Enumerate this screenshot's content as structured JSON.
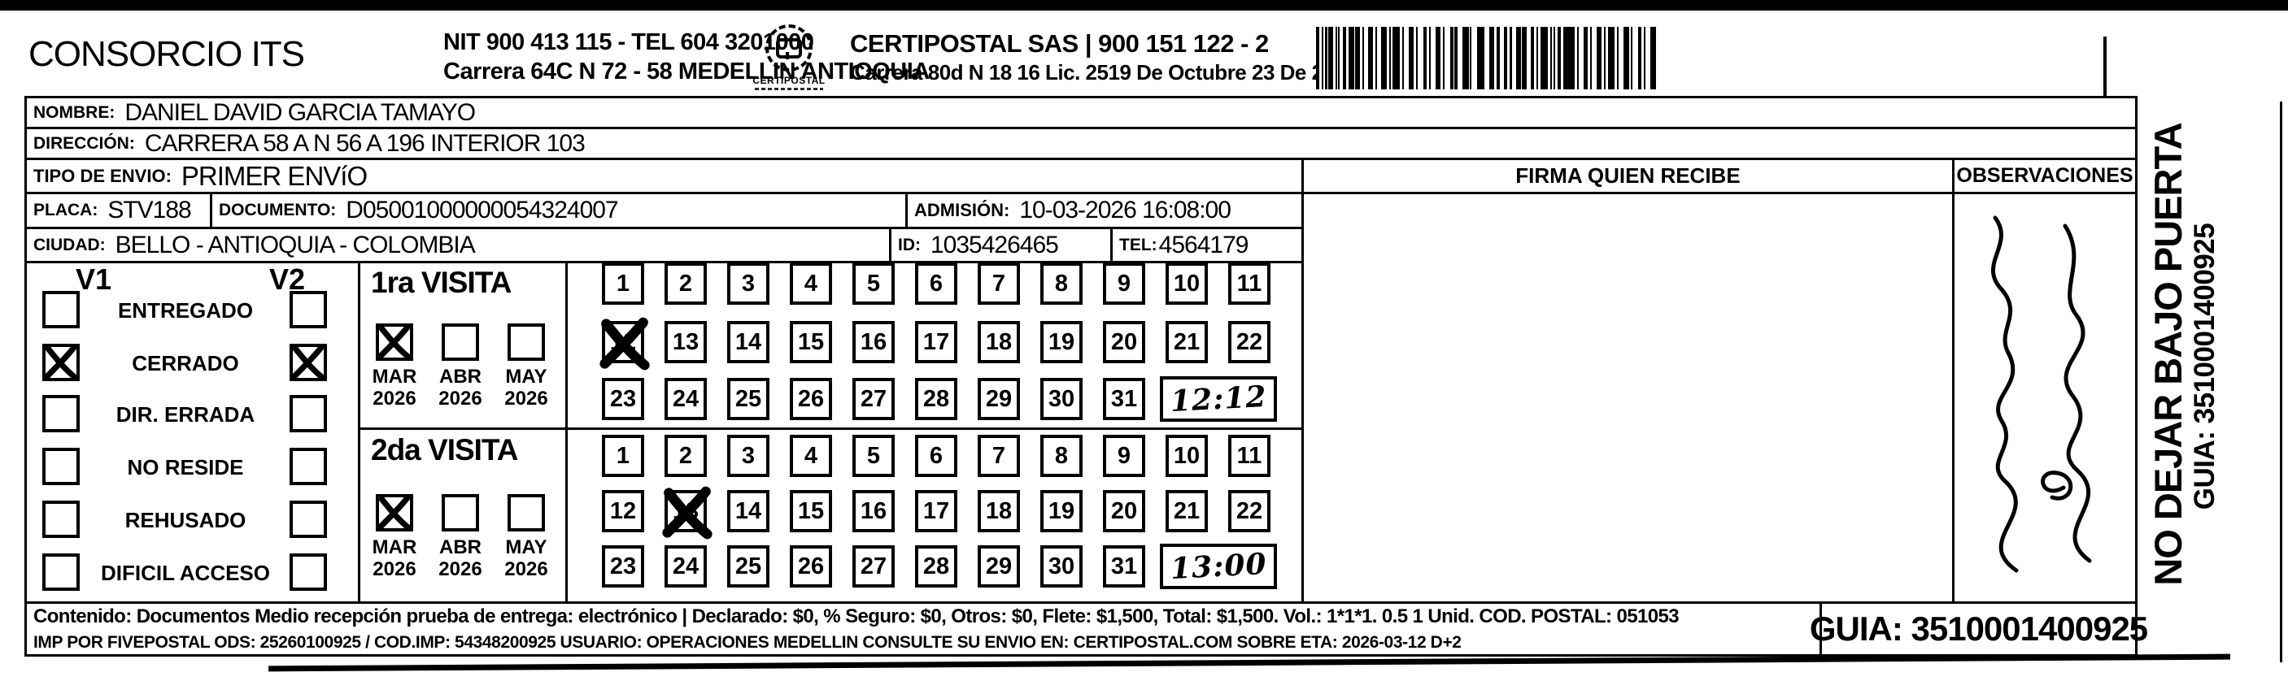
{
  "header": {
    "company": "CONSORCIO ITS",
    "nit_line1": "NIT 900 413 115 - TEL 604 3201000",
    "nit_line2": "Carrera 64C N 72 - 58 MEDELLIN ANTIOQUIA",
    "logo_caption": "CERTIPOSTAL",
    "certipostal_line1": "CERTIPOSTAL SAS | 900 151 122 - 2",
    "certipostal_line2": "Carrera 80d N 18 16  Lic. 2519 De Octubre 23 De 2015"
  },
  "recipient": {
    "nombre_label": "NOMBRE:",
    "nombre": "DANIEL DAVID GARCIA TAMAYO",
    "direccion_label": "DIRECCIÓN:",
    "direccion": "CARRERA 58 A N 56 A 196 INTERIOR 103",
    "tipo_envio_label": "TIPO DE ENVIO:",
    "tipo_envio": "PRIMER ENVíO",
    "placa_label": "PLACA:",
    "placa": "STV188",
    "documento_label": "DOCUMENTO:",
    "documento": "D05001000000054324007",
    "admision_label": "ADMISIÓN:",
    "admision": "10-03-2026 16:08:00",
    "ciudad_label": "CIUDAD:",
    "ciudad": "BELLO - ANTIOQUIA - COLOMBIA",
    "id_label": "ID:",
    "id": "1035426465",
    "tel_label": "TEL:",
    "tel": "4564179"
  },
  "status": {
    "v1_label": "V1",
    "v2_label": "V2",
    "options": [
      {
        "label": "ENTREGADO",
        "v1": false,
        "v2": false
      },
      {
        "label": "CERRADO",
        "v1": true,
        "v2": true
      },
      {
        "label": "DIR. ERRADA",
        "v1": false,
        "v2": false
      },
      {
        "label": "NO RESIDE",
        "v1": false,
        "v2": false
      },
      {
        "label": "REHUSADO",
        "v1": false,
        "v2": false
      },
      {
        "label": "DIFICIL ACCESO",
        "v1": false,
        "v2": false
      }
    ]
  },
  "visits": [
    {
      "title": "1ra VISITA",
      "months": [
        {
          "label": "MAR",
          "year": "2026",
          "checked": true
        },
        {
          "label": "ABR",
          "year": "2026",
          "checked": false
        },
        {
          "label": "MAY",
          "year": "2026",
          "checked": false
        }
      ],
      "crossed_day": 12,
      "time": "12:12"
    },
    {
      "title": "2da VISITA",
      "months": [
        {
          "label": "MAR",
          "year": "2026",
          "checked": true
        },
        {
          "label": "ABR",
          "year": "2026",
          "checked": false
        },
        {
          "label": "MAY",
          "year": "2026",
          "checked": false
        }
      ],
      "crossed_day": 13,
      "time": "13:00"
    }
  ],
  "day_grid": {
    "rows": [
      [
        1,
        2,
        3,
        4,
        5,
        6,
        7,
        8,
        9,
        10,
        11
      ],
      [
        12,
        13,
        14,
        15,
        16,
        17,
        18,
        19,
        20,
        21,
        22
      ],
      [
        23,
        24,
        25,
        26,
        27,
        28,
        29,
        30,
        31
      ]
    ]
  },
  "firma": {
    "header": "FIRMA QUIEN RECIBE"
  },
  "observaciones": {
    "header": "OBSERVACIONES"
  },
  "side_strip": {
    "line1": "NO DEJAR BAJO PUERTA",
    "line2": "GUIA: 3510001400925"
  },
  "footer": {
    "contenido_line1": "Contenido: Documentos Medio recepción prueba de entrega: electrónico | Declarado: $0, % Seguro: $0, Otros: $0, Flete: $1,500, Total: $1,500. Vol.: 1*1*1. 0.5  1 Unid. COD. POSTAL: 051053",
    "contenido_line2": "IMP POR FIVEPOSTAL ODS: 25260100925 / COD.IMP: 54348200925 USUARIO: OPERACIONES MEDELLIN CONSULTE SU ENVIO EN: CERTIPOSTAL.COM SOBRE ETA: 2026-03-12 D+2",
    "guia": "GUIA: 3510001400925"
  },
  "colors": {
    "ink": "#000000",
    "paper": "#ffffff"
  }
}
